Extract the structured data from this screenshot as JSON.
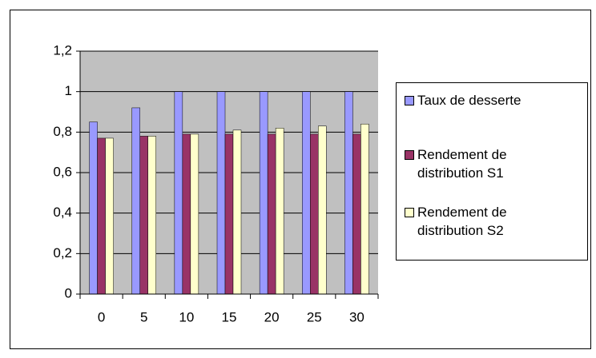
{
  "chart_data": {
    "type": "bar",
    "categories": [
      "0",
      "5",
      "10",
      "15",
      "20",
      "25",
      "30"
    ],
    "series": [
      {
        "name": "Taux de desserte",
        "color": "#9999ff",
        "values": [
          0.85,
          0.92,
          1,
          1,
          1,
          1,
          1
        ]
      },
      {
        "name": "Rendement de distribution S1",
        "color": "#993366",
        "values": [
          0.77,
          0.78,
          0.79,
          0.79,
          0.79,
          0.79,
          0.79
        ]
      },
      {
        "name": "Rendement de distribution S2",
        "color": "#ffffcc",
        "values": [
          0.77,
          0.78,
          0.79,
          0.81,
          0.82,
          0.83,
          0.84
        ]
      }
    ],
    "ylim": [
      0,
      1.2
    ],
    "yticks": [
      0,
      {
        "value": 0.2,
        "label": "0,2"
      },
      {
        "value": 0.4,
        "label": "0,4"
      },
      {
        "value": 0.6,
        "label": "0,6"
      },
      {
        "value": 0.8,
        "label": "0,8"
      },
      1,
      {
        "value": 1.2,
        "label": "1,2"
      }
    ],
    "grid": true,
    "legend": "right",
    "plot_background": "#c0c0c0"
  }
}
